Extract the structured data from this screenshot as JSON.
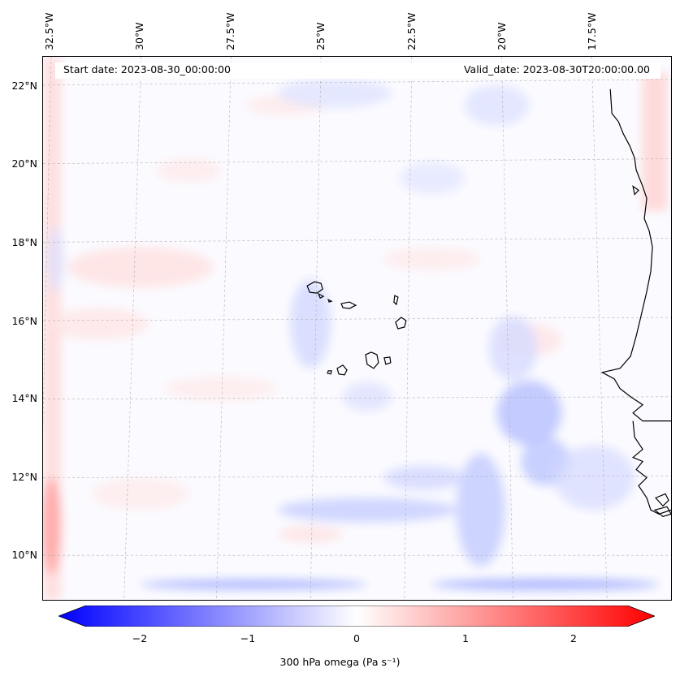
{
  "header": {
    "start_date": "Start date: 2023-08-30_00:00:00",
    "valid_date": "Valid_date: 2023-08-30T20:00:00.00"
  },
  "longitude_labels": [
    "32.5°W",
    "30°W",
    "27.5°W",
    "25°W",
    "22.5°W",
    "20°W",
    "17.5°W"
  ],
  "latitude_labels": [
    "22°N",
    "20°N",
    "18°N",
    "16°N",
    "14°N",
    "12°N",
    "10°N"
  ],
  "colorbar": {
    "label": "300 hPa omega (Pa s⁻¹)",
    "ticks": [
      "−2",
      "−1",
      "0",
      "1",
      "2"
    ],
    "min_value": -2.7,
    "max_value": 2.7,
    "colors": {
      "low": "#0000ff",
      "mid": "#ffffff",
      "high": "#ff0000"
    }
  },
  "colors": {
    "coastline": "#000000",
    "gridline": "#b0b0b0"
  }
}
